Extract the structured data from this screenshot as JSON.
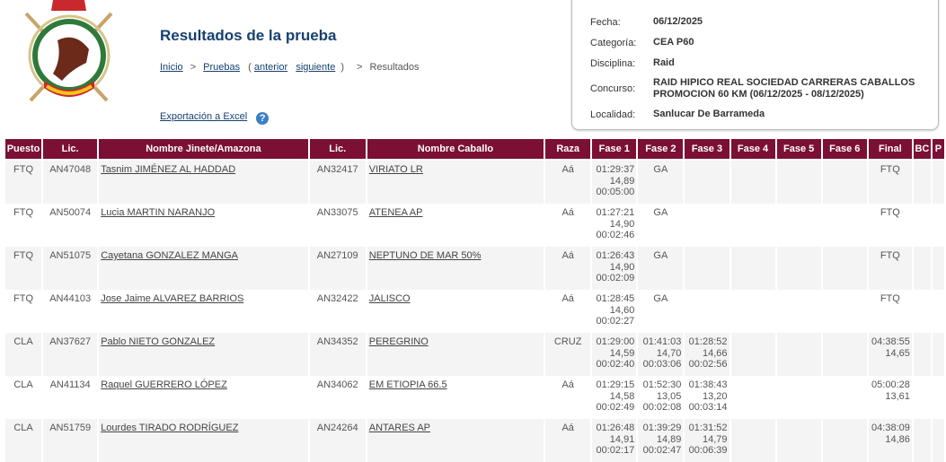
{
  "header": {
    "title": "Resultados de la prueba",
    "logo_text": "FEDERACION ANDALUZA DE HIPICA"
  },
  "breadcrumb": {
    "inicio": "Inicio",
    "pruebas": "Pruebas",
    "open": "(",
    "anterior": "anterior",
    "siguiente": "siguiente",
    "close": ")",
    "sep": ">",
    "current": "Resultados"
  },
  "export": {
    "label": "Exportación a Excel",
    "help": "?"
  },
  "info": [
    {
      "label": "Fecha:",
      "value": "06/12/2025"
    },
    {
      "label": "Categoría:",
      "value": "CEA P60"
    },
    {
      "label": "Disciplina:",
      "value": "Raid"
    },
    {
      "label": "Concurso:",
      "value": "RAID HIPICO REAL SOCIEDAD CARRERAS CABALLOS PROMOCION 60 KM (06/12/2025 - 08/12/2025)"
    },
    {
      "label": "Localidad:",
      "value": "Sanlucar De Barrameda"
    }
  ],
  "table": {
    "colors": {
      "header_bg": "#7b1034",
      "row_alt": "#f4f4f4"
    },
    "columns": [
      "Puesto",
      "Lic.",
      "Nombre Jinete/Amazona",
      "Lic.",
      "Nombre Caballo",
      "Raza",
      "Fase 1",
      "Fase 2",
      "Fase 3",
      "Fase 4",
      "Fase 5",
      "Fase 6",
      "Final",
      "BC",
      "P"
    ],
    "rows": [
      {
        "puesto": "FTQ",
        "lic": "AN47048",
        "jinete": "Tasnim JIMÉNEZ AL HADDAD",
        "lic_caballo": "AN32417",
        "caballo": "VIRIATO LR",
        "raza": "Aá",
        "fases": [
          [
            "01:29:37",
            "14,89",
            "00:05:00"
          ],
          [
            "GA"
          ],
          [],
          [],
          [],
          []
        ],
        "final": [
          "FTQ"
        ]
      },
      {
        "puesto": "FTQ",
        "lic": "AN50074",
        "jinete": "Lucia MARTIN NARANJO",
        "lic_caballo": "AN33075",
        "caballo": "ATENEA AP",
        "raza": "Aá",
        "fases": [
          [
            "01:27:21",
            "14,90",
            "00:02:46"
          ],
          [
            "GA"
          ],
          [],
          [],
          [],
          []
        ],
        "final": [
          "FTQ"
        ]
      },
      {
        "puesto": "FTQ",
        "lic": "AN51075",
        "jinete": "Cayetana GONZALEZ MANGA",
        "lic_caballo": "AN27109",
        "caballo": "NEPTUNO DE MAR 50%",
        "raza": "Aá",
        "fases": [
          [
            "01:26:43",
            "14,90",
            "00:02:09"
          ],
          [
            "GA"
          ],
          [],
          [],
          [],
          []
        ],
        "final": [
          "FTQ"
        ]
      },
      {
        "puesto": "FTQ",
        "lic": "AN44103",
        "jinete": "Jose Jaime ALVAREZ BARRIOS",
        "lic_caballo": "AN32422",
        "caballo": "JALISCO",
        "raza": "Aá",
        "fases": [
          [
            "01:28:45",
            "14,60",
            "00:02:27"
          ],
          [
            "GA"
          ],
          [],
          [],
          [],
          []
        ],
        "final": [
          "FTQ"
        ]
      },
      {
        "puesto": "CLA",
        "lic": "AN37627",
        "jinete": "Pablo NIETO GONZALEZ",
        "lic_caballo": "AN34352",
        "caballo": "PEREGRINO",
        "raza": "CRUZ",
        "fases": [
          [
            "01:29:00",
            "14,59",
            "00:02:40"
          ],
          [
            "01:41:03",
            "14,70",
            "00:03:06"
          ],
          [
            "01:28:52",
            "14,66",
            "00:02:56"
          ],
          [],
          [],
          []
        ],
        "final": [
          "04:38:55",
          "14,65"
        ]
      },
      {
        "puesto": "CLA",
        "lic": "AN41134",
        "jinete": "Raquel GUERRERO LÓPEZ",
        "lic_caballo": "AN34062",
        "caballo": "EM ETIOPIA 66.5",
        "raza": "Aá",
        "fases": [
          [
            "01:29:15",
            "14,58",
            "00:02:49"
          ],
          [
            "01:52:30",
            "13,05",
            "00:02:08"
          ],
          [
            "01:38:43",
            "13,20",
            "00:03:14"
          ],
          [],
          [],
          []
        ],
        "final": [
          "05:00:28",
          "13,61"
        ]
      },
      {
        "puesto": "CLA",
        "lic": "AN51759",
        "jinete": "Lourdes TIRADO RODRÍGUEZ",
        "lic_caballo": "AN24264",
        "caballo": "ANTARES AP",
        "raza": "Aá",
        "fases": [
          [
            "01:26:48",
            "14,91",
            "00:02:17"
          ],
          [
            "01:39:29",
            "14,89",
            "00:02:47"
          ],
          [
            "01:31:52",
            "14,79",
            "00:06:39"
          ],
          [],
          [],
          []
        ],
        "final": [
          "04:38:09",
          "14,86"
        ]
      }
    ]
  }
}
